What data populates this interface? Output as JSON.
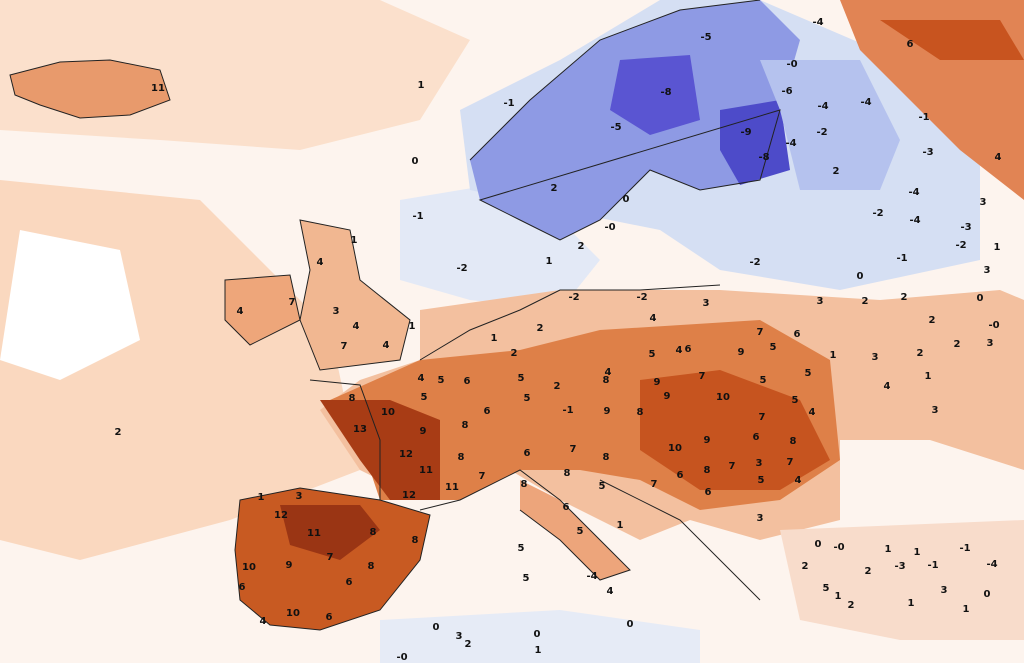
{
  "map": {
    "labels": [
      "11",
      "1",
      "-1",
      "0",
      "-1",
      "-2",
      "2",
      "-5",
      "-4",
      "6",
      "-0",
      "-8",
      "-5",
      "-6",
      "-4",
      "-4",
      "-1",
      "-2",
      "-9",
      "-8",
      "-4",
      "-3",
      "4",
      "0",
      "2",
      "-4",
      "-2",
      "-4",
      "3",
      "-3",
      "-2",
      "1",
      "-2",
      "-1",
      "0",
      "3",
      "-0",
      "2",
      "2",
      "1",
      "1",
      "4",
      "4",
      "7",
      "4",
      "3",
      "4",
      "7",
      "1",
      "2",
      "1",
      "2",
      "-2",
      "-2",
      "3",
      "4",
      "7",
      "6",
      "3",
      "2",
      "2",
      "0",
      "2",
      "2",
      "-0",
      "4",
      "5",
      "6",
      "9",
      "5",
      "1",
      "3",
      "2",
      "3",
      "4",
      "5",
      "6",
      "5",
      "2",
      "4",
      "8",
      "9",
      "7",
      "5",
      "5",
      "8",
      "10",
      "5",
      "6",
      "5",
      "-1",
      "13",
      "9",
      "8",
      "12",
      "8",
      "11",
      "11",
      "12",
      "7",
      "9",
      "8",
      "9",
      "10",
      "7",
      "4",
      "5",
      "4",
      "1",
      "3",
      "7",
      "10",
      "9",
      "6",
      "8",
      "3",
      "7",
      "8",
      "6",
      "8",
      "5",
      "7",
      "8",
      "6",
      "4",
      "5",
      "7",
      "6",
      "8",
      "6",
      "5",
      "1",
      "3",
      "5",
      "5",
      "1",
      "3",
      "12",
      "11",
      "8",
      "8",
      "10",
      "9",
      "7",
      "8",
      "6",
      "6",
      "10",
      "6",
      "4",
      "0",
      "-0",
      "1",
      "1",
      "-1",
      "-3",
      "2",
      "-1",
      "3",
      "0",
      "5",
      "1",
      "2",
      "1",
      "1",
      "-4",
      "2",
      "0",
      "3",
      "2",
      "0",
      "-0",
      "1",
      "0",
      "4",
      "-4"
    ]
  }
}
